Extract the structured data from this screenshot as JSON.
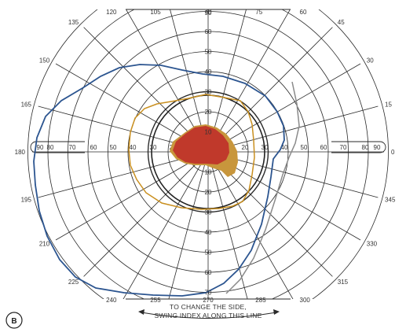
{
  "panel_label": "B",
  "instruction": {
    "line1": "TO CHANGE THE SIDE,",
    "line2": "SWING INDEX ALONG THIS LINE"
  },
  "meridian_labels": [
    "0",
    "15",
    "30",
    "45",
    "60",
    "75",
    "90",
    "105",
    "120",
    "135",
    "150",
    "165",
    "180",
    "195",
    "210",
    "225",
    "240",
    "255",
    "270",
    "285",
    "300",
    "315",
    "330",
    "345"
  ],
  "ring_labels": [
    "10",
    "20",
    "30",
    "40",
    "50",
    "60",
    "70"
  ],
  "horizontal_scale_labels": [
    "90",
    "80",
    "70",
    "60",
    "50",
    "40",
    "30",
    "20",
    "10",
    "10",
    "20",
    "30",
    "40",
    "50",
    "60",
    "70",
    "80",
    "90"
  ],
  "colors": {
    "grid": "#2a2a2a",
    "outer_isopter": "#2c5590",
    "mid_isopter": "#c98f1f",
    "inner_isopter": "#222222",
    "gray_line": "#8a8a8a",
    "scotoma_fill": "#c8963c",
    "scotoma_core": "#c0392b"
  }
}
